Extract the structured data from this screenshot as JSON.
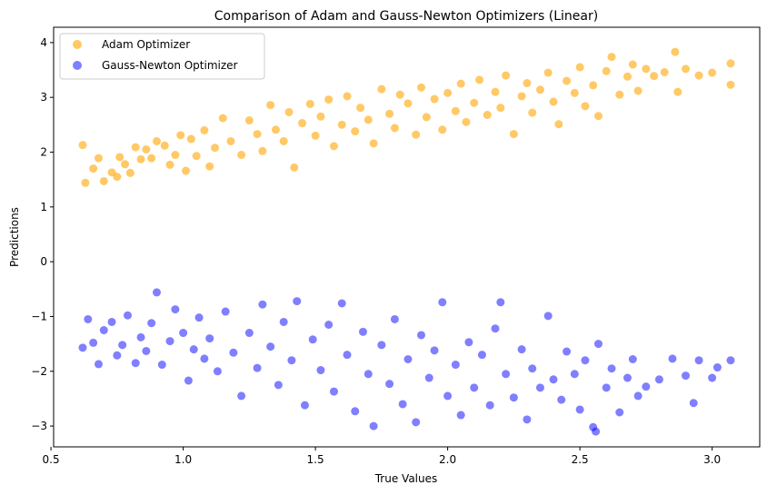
{
  "chart_data": {
    "type": "scatter",
    "title": "Comparison of Adam and Gauss-Newton Optimizers (Linear)",
    "xlabel": "True Values",
    "ylabel": "Predictions",
    "xlim": [
      0.51,
      3.18
    ],
    "ylim": [
      -3.38,
      4.28
    ],
    "x_ticks": [
      "0.5",
      "1.0",
      "1.5",
      "2.0",
      "2.5",
      "3.0"
    ],
    "x_tick_values": [
      0.5,
      1.0,
      1.5,
      2.0,
      2.5,
      3.0
    ],
    "y_ticks": [
      "−3",
      "−2",
      "−1",
      "0",
      "1",
      "2",
      "3",
      "4"
    ],
    "y_tick_values": [
      -3,
      -2,
      -1,
      0,
      1,
      2,
      3,
      4
    ],
    "grid": false,
    "legend": "top-left",
    "series": [
      {
        "name": "Adam Optimizer",
        "color": "#ffa500",
        "alpha": 0.6,
        "points": [
          [
            0.62,
            2.13
          ],
          [
            0.63,
            1.44
          ],
          [
            0.66,
            1.7
          ],
          [
            0.68,
            1.89
          ],
          [
            0.7,
            1.47
          ],
          [
            0.73,
            1.63
          ],
          [
            0.75,
            1.55
          ],
          [
            0.76,
            1.91
          ],
          [
            0.78,
            1.78
          ],
          [
            0.8,
            1.62
          ],
          [
            0.82,
            2.09
          ],
          [
            0.84,
            1.87
          ],
          [
            0.86,
            2.05
          ],
          [
            0.88,
            1.89
          ],
          [
            0.9,
            2.2
          ],
          [
            0.93,
            2.12
          ],
          [
            0.95,
            1.77
          ],
          [
            0.97,
            1.95
          ],
          [
            0.99,
            2.31
          ],
          [
            1.01,
            1.66
          ],
          [
            1.03,
            2.24
          ],
          [
            1.05,
            1.93
          ],
          [
            1.08,
            2.4
          ],
          [
            1.1,
            1.74
          ],
          [
            1.12,
            2.08
          ],
          [
            1.15,
            2.62
          ],
          [
            1.18,
            2.2
          ],
          [
            1.22,
            1.95
          ],
          [
            1.25,
            2.58
          ],
          [
            1.28,
            2.33
          ],
          [
            1.3,
            2.02
          ],
          [
            1.33,
            2.86
          ],
          [
            1.35,
            2.41
          ],
          [
            1.38,
            2.2
          ],
          [
            1.4,
            2.73
          ],
          [
            1.42,
            1.72
          ],
          [
            1.45,
            2.53
          ],
          [
            1.48,
            2.88
          ],
          [
            1.5,
            2.3
          ],
          [
            1.52,
            2.65
          ],
          [
            1.55,
            2.96
          ],
          [
            1.57,
            2.11
          ],
          [
            1.6,
            2.5
          ],
          [
            1.62,
            3.02
          ],
          [
            1.65,
            2.38
          ],
          [
            1.67,
            2.81
          ],
          [
            1.7,
            2.59
          ],
          [
            1.72,
            2.16
          ],
          [
            1.75,
            3.15
          ],
          [
            1.78,
            2.7
          ],
          [
            1.8,
            2.44
          ],
          [
            1.82,
            3.05
          ],
          [
            1.85,
            2.89
          ],
          [
            1.88,
            2.32
          ],
          [
            1.9,
            3.18
          ],
          [
            1.92,
            2.64
          ],
          [
            1.95,
            2.97
          ],
          [
            1.98,
            2.41
          ],
          [
            2.0,
            3.08
          ],
          [
            2.03,
            2.75
          ],
          [
            2.05,
            3.25
          ],
          [
            2.07,
            2.55
          ],
          [
            2.1,
            2.9
          ],
          [
            2.12,
            3.32
          ],
          [
            2.15,
            2.68
          ],
          [
            2.18,
            3.1
          ],
          [
            2.2,
            2.81
          ],
          [
            2.22,
            3.4
          ],
          [
            2.25,
            2.33
          ],
          [
            2.28,
            3.02
          ],
          [
            2.3,
            3.26
          ],
          [
            2.32,
            2.72
          ],
          [
            2.35,
            3.14
          ],
          [
            2.38,
            3.45
          ],
          [
            2.4,
            2.92
          ],
          [
            2.42,
            2.51
          ],
          [
            2.45,
            3.3
          ],
          [
            2.48,
            3.08
          ],
          [
            2.5,
            3.55
          ],
          [
            2.52,
            2.84
          ],
          [
            2.55,
            3.22
          ],
          [
            2.57,
            2.66
          ],
          [
            2.6,
            3.48
          ],
          [
            2.62,
            3.74
          ],
          [
            2.65,
            3.05
          ],
          [
            2.68,
            3.38
          ],
          [
            2.7,
            3.6
          ],
          [
            2.72,
            3.12
          ],
          [
            2.75,
            3.52
          ],
          [
            2.78,
            3.39
          ],
          [
            2.82,
            3.46
          ],
          [
            2.86,
            3.83
          ],
          [
            2.87,
            3.1
          ],
          [
            2.9,
            3.52
          ],
          [
            2.95,
            3.4
          ],
          [
            3.0,
            3.45
          ],
          [
            3.07,
            3.23
          ],
          [
            3.07,
            3.62
          ]
        ]
      },
      {
        "name": "Gauss-Newton Optimizer",
        "color": "#0000ff",
        "alpha": 0.5,
        "points": [
          [
            0.62,
            -1.57
          ],
          [
            0.64,
            -1.05
          ],
          [
            0.66,
            -1.48
          ],
          [
            0.68,
            -1.87
          ],
          [
            0.7,
            -1.25
          ],
          [
            0.73,
            -1.1
          ],
          [
            0.75,
            -1.71
          ],
          [
            0.77,
            -1.52
          ],
          [
            0.79,
            -0.98
          ],
          [
            0.82,
            -1.85
          ],
          [
            0.84,
            -1.38
          ],
          [
            0.86,
            -1.63
          ],
          [
            0.88,
            -1.12
          ],
          [
            0.9,
            -0.56
          ],
          [
            0.92,
            -1.88
          ],
          [
            0.95,
            -1.45
          ],
          [
            0.97,
            -0.87
          ],
          [
            1.0,
            -1.3
          ],
          [
            1.02,
            -2.17
          ],
          [
            1.04,
            -1.6
          ],
          [
            1.06,
            -1.02
          ],
          [
            1.08,
            -1.77
          ],
          [
            1.1,
            -1.4
          ],
          [
            1.13,
            -2.0
          ],
          [
            1.16,
            -0.91
          ],
          [
            1.19,
            -1.66
          ],
          [
            1.22,
            -2.45
          ],
          [
            1.25,
            -1.3
          ],
          [
            1.28,
            -1.94
          ],
          [
            1.3,
            -0.78
          ],
          [
            1.33,
            -1.55
          ],
          [
            1.36,
            -2.25
          ],
          [
            1.38,
            -1.1
          ],
          [
            1.41,
            -1.8
          ],
          [
            1.43,
            -0.72
          ],
          [
            1.46,
            -2.62
          ],
          [
            1.49,
            -1.42
          ],
          [
            1.52,
            -1.98
          ],
          [
            1.55,
            -1.15
          ],
          [
            1.57,
            -2.37
          ],
          [
            1.6,
            -0.76
          ],
          [
            1.62,
            -1.7
          ],
          [
            1.65,
            -2.73
          ],
          [
            1.68,
            -1.28
          ],
          [
            1.7,
            -2.05
          ],
          [
            1.72,
            -3.0
          ],
          [
            1.75,
            -1.52
          ],
          [
            1.78,
            -2.23
          ],
          [
            1.8,
            -1.05
          ],
          [
            1.83,
            -2.6
          ],
          [
            1.85,
            -1.78
          ],
          [
            1.88,
            -2.93
          ],
          [
            1.9,
            -1.34
          ],
          [
            1.93,
            -2.12
          ],
          [
            1.95,
            -1.62
          ],
          [
            1.98,
            -0.74
          ],
          [
            2.0,
            -2.45
          ],
          [
            2.03,
            -1.88
          ],
          [
            2.05,
            -2.8
          ],
          [
            2.08,
            -1.47
          ],
          [
            2.1,
            -2.3
          ],
          [
            2.13,
            -1.7
          ],
          [
            2.16,
            -2.62
          ],
          [
            2.18,
            -1.22
          ],
          [
            2.2,
            -0.74
          ],
          [
            2.22,
            -2.05
          ],
          [
            2.25,
            -2.48
          ],
          [
            2.28,
            -1.6
          ],
          [
            2.3,
            -2.88
          ],
          [
            2.32,
            -1.95
          ],
          [
            2.35,
            -2.3
          ],
          [
            2.38,
            -0.99
          ],
          [
            2.4,
            -2.15
          ],
          [
            2.43,
            -2.52
          ],
          [
            2.45,
            -1.64
          ],
          [
            2.48,
            -2.05
          ],
          [
            2.5,
            -2.7
          ],
          [
            2.52,
            -1.8
          ],
          [
            2.55,
            -3.02
          ],
          [
            2.56,
            -3.1
          ],
          [
            2.57,
            -1.5
          ],
          [
            2.6,
            -2.3
          ],
          [
            2.62,
            -1.95
          ],
          [
            2.65,
            -2.75
          ],
          [
            2.68,
            -2.12
          ],
          [
            2.7,
            -1.78
          ],
          [
            2.72,
            -2.45
          ],
          [
            2.75,
            -2.28
          ],
          [
            2.8,
            -2.15
          ],
          [
            2.85,
            -1.77
          ],
          [
            2.9,
            -2.08
          ],
          [
            2.93,
            -2.58
          ],
          [
            2.95,
            -1.8
          ],
          [
            3.0,
            -2.12
          ],
          [
            3.02,
            -1.93
          ],
          [
            3.07,
            -1.8
          ]
        ]
      }
    ]
  }
}
